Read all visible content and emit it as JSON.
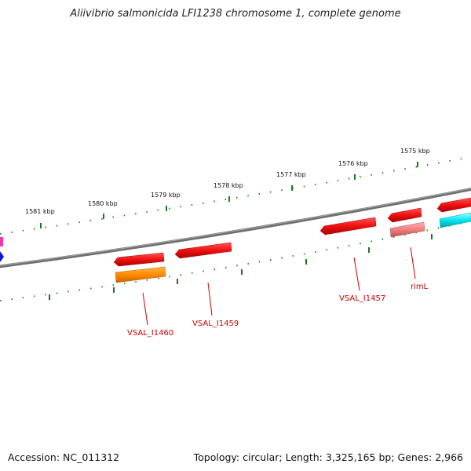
{
  "title": "Aliivibrio salmonicida LFI1238 chromosome 1, complete genome",
  "footer": {
    "accession": "Accession: NC_011312",
    "summary": "Topology: circular; Length: 3,325,165 bp; Genes: 2,966"
  },
  "tick_labels": [
    "1581 kbp",
    "1580 kbp",
    "1579 kbp",
    "1578 kbp",
    "1577 kbp",
    "1576 kbp",
    "1575 kbp"
  ],
  "gene_labels": [
    "VSAL_I1460",
    "VSAL_I1459",
    "VSAL_I1457",
    "rimL"
  ],
  "colors": {
    "backbone": "#808080",
    "tick": "#1a7a1a",
    "gene_red": "#ee1111",
    "gene_orange": "#ff8c00",
    "gene_pink": "#f08080",
    "gene_cyan": "#00e5ee",
    "gene_blue": "#1010ee",
    "gene_magenta": "#ff33aa",
    "label": "#cc0000"
  }
}
